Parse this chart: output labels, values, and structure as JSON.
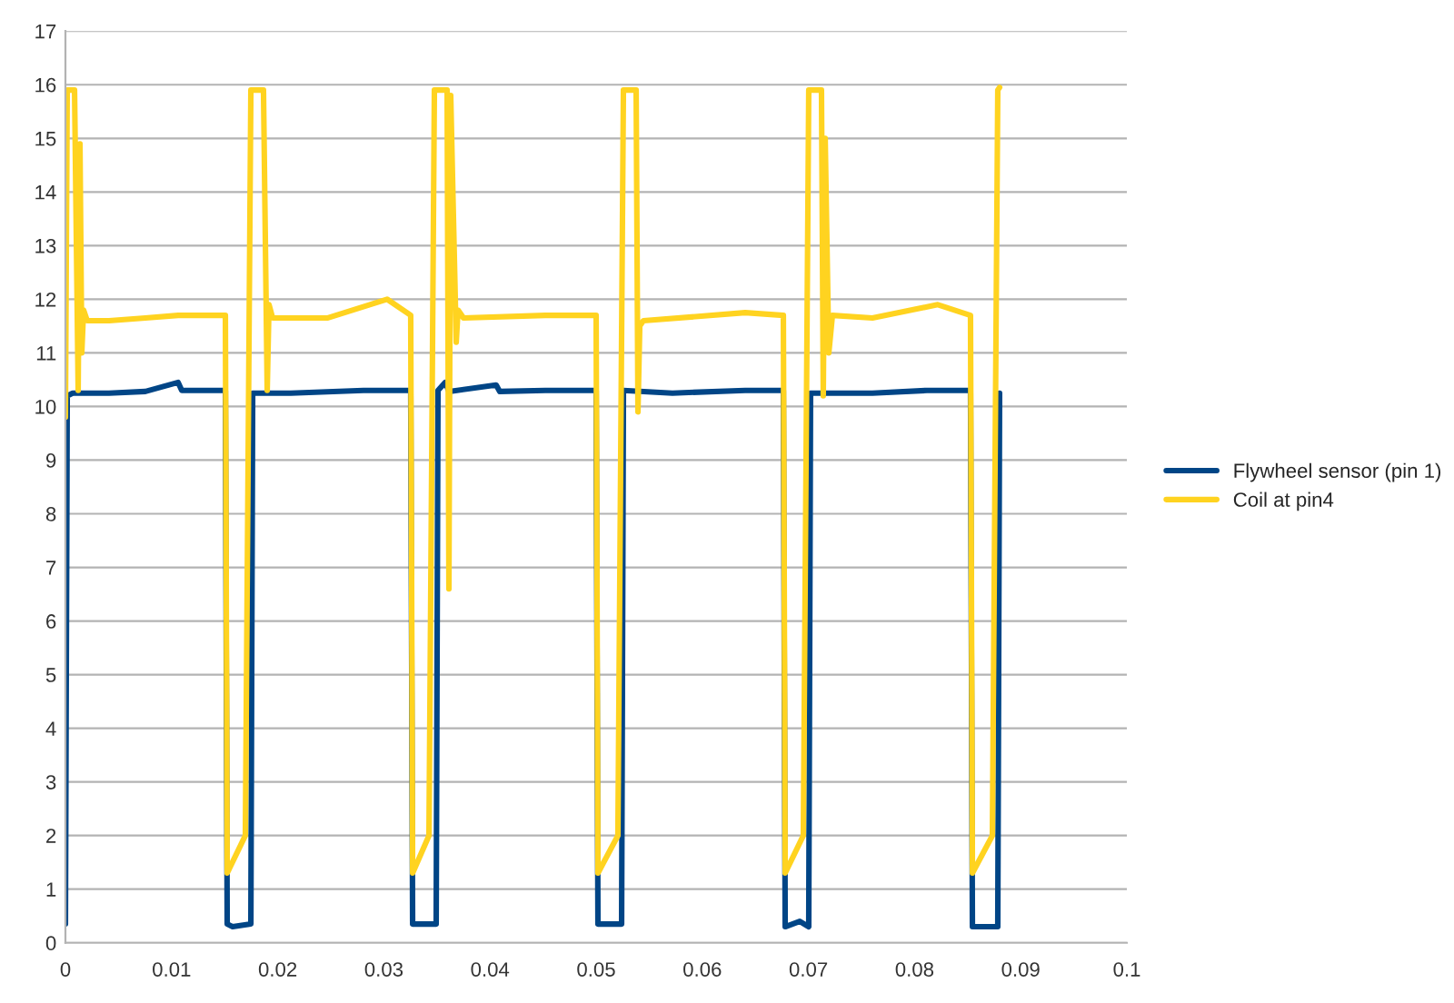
{
  "chart_data": {
    "type": "line",
    "series": [
      {
        "name": "Flywheel sensor (pin 1)",
        "color": "#004586",
        "x": [
          0,
          0.00017,
          0.00068,
          0.00411,
          0.00753,
          0.01062,
          0.01096,
          0.01507,
          0.01524,
          0.01575,
          0.01747,
          0.01764,
          0.02123,
          0.02808,
          0.03253,
          0.03271,
          0.03493,
          0.0351,
          0.03579,
          0.03613,
          0.04058,
          0.04092,
          0.04521,
          0.05,
          0.05017,
          0.0524,
          0.05257,
          0.05719,
          0.06404,
          0.06764,
          0.06781,
          0.06918,
          0.07003,
          0.0702,
          0.07603,
          0.08116,
          0.08527,
          0.08545,
          0.08784,
          0.08801
        ],
        "values": [
          0.35,
          10.2,
          10.25,
          10.25,
          10.28,
          10.45,
          10.3,
          10.3,
          0.35,
          0.3,
          0.35,
          10.25,
          10.25,
          10.3,
          10.3,
          0.35,
          0.35,
          10.3,
          10.45,
          10.28,
          10.4,
          10.28,
          10.3,
          10.3,
          0.35,
          0.35,
          10.3,
          10.25,
          10.3,
          10.3,
          0.3,
          0.4,
          0.3,
          10.25,
          10.25,
          10.3,
          10.3,
          0.3,
          0.3,
          10.25
        ]
      },
      {
        "name": "Coil at pin4",
        "color": "#ffd320",
        "x": [
          0,
          0.00017,
          0.00086,
          0.0012,
          0.00137,
          0.00154,
          0.00171,
          0.00205,
          0.00411,
          0.00753,
          0.01062,
          0.01507,
          0.01524,
          0.01695,
          0.01747,
          0.01866,
          0.01901,
          0.01918,
          0.01952,
          0.02466,
          0.03031,
          0.03253,
          0.03271,
          0.03425,
          0.03476,
          0.03596,
          0.03613,
          0.0363,
          0.03682,
          0.03699,
          0.0375,
          0.04521,
          0.05,
          0.05017,
          0.05205,
          0.05257,
          0.05377,
          0.05394,
          0.05411,
          0.05445,
          0.06404,
          0.06764,
          0.06781,
          0.06952,
          0.07003,
          0.07123,
          0.0714,
          0.07158,
          0.07192,
          0.07226,
          0.07603,
          0.08219,
          0.08527,
          0.08545,
          0.08733,
          0.08784,
          0.08801
        ],
        "values": [
          9.8,
          15.9,
          15.9,
          10.3,
          14.9,
          11.0,
          11.8,
          11.6,
          11.6,
          11.65,
          11.7,
          11.7,
          1.3,
          2.0,
          15.9,
          15.9,
          10.3,
          11.9,
          11.65,
          11.65,
          12.0,
          11.7,
          1.3,
          2.0,
          15.9,
          15.9,
          6.6,
          15.8,
          11.2,
          11.8,
          11.65,
          11.7,
          11.7,
          1.3,
          2.0,
          15.9,
          15.9,
          9.9,
          11.5,
          11.6,
          11.75,
          11.7,
          1.3,
          2.0,
          15.9,
          15.9,
          10.2,
          15.0,
          11.0,
          11.7,
          11.65,
          11.9,
          11.7,
          1.3,
          2.0,
          15.9,
          15.95
        ]
      }
    ],
    "xlim": [
      0,
      0.1
    ],
    "xticks": [
      0,
      0.01,
      0.02,
      0.03,
      0.04,
      0.05,
      0.06,
      0.07,
      0.08,
      0.09,
      0.1
    ],
    "ylim": [
      0,
      17
    ],
    "yticks": [
      0,
      1,
      2,
      3,
      4,
      5,
      6,
      7,
      8,
      9,
      10,
      11,
      12,
      13,
      14,
      15,
      16,
      17
    ],
    "grid": "y",
    "legend": "right",
    "marker": "none",
    "line_style": "solid"
  }
}
